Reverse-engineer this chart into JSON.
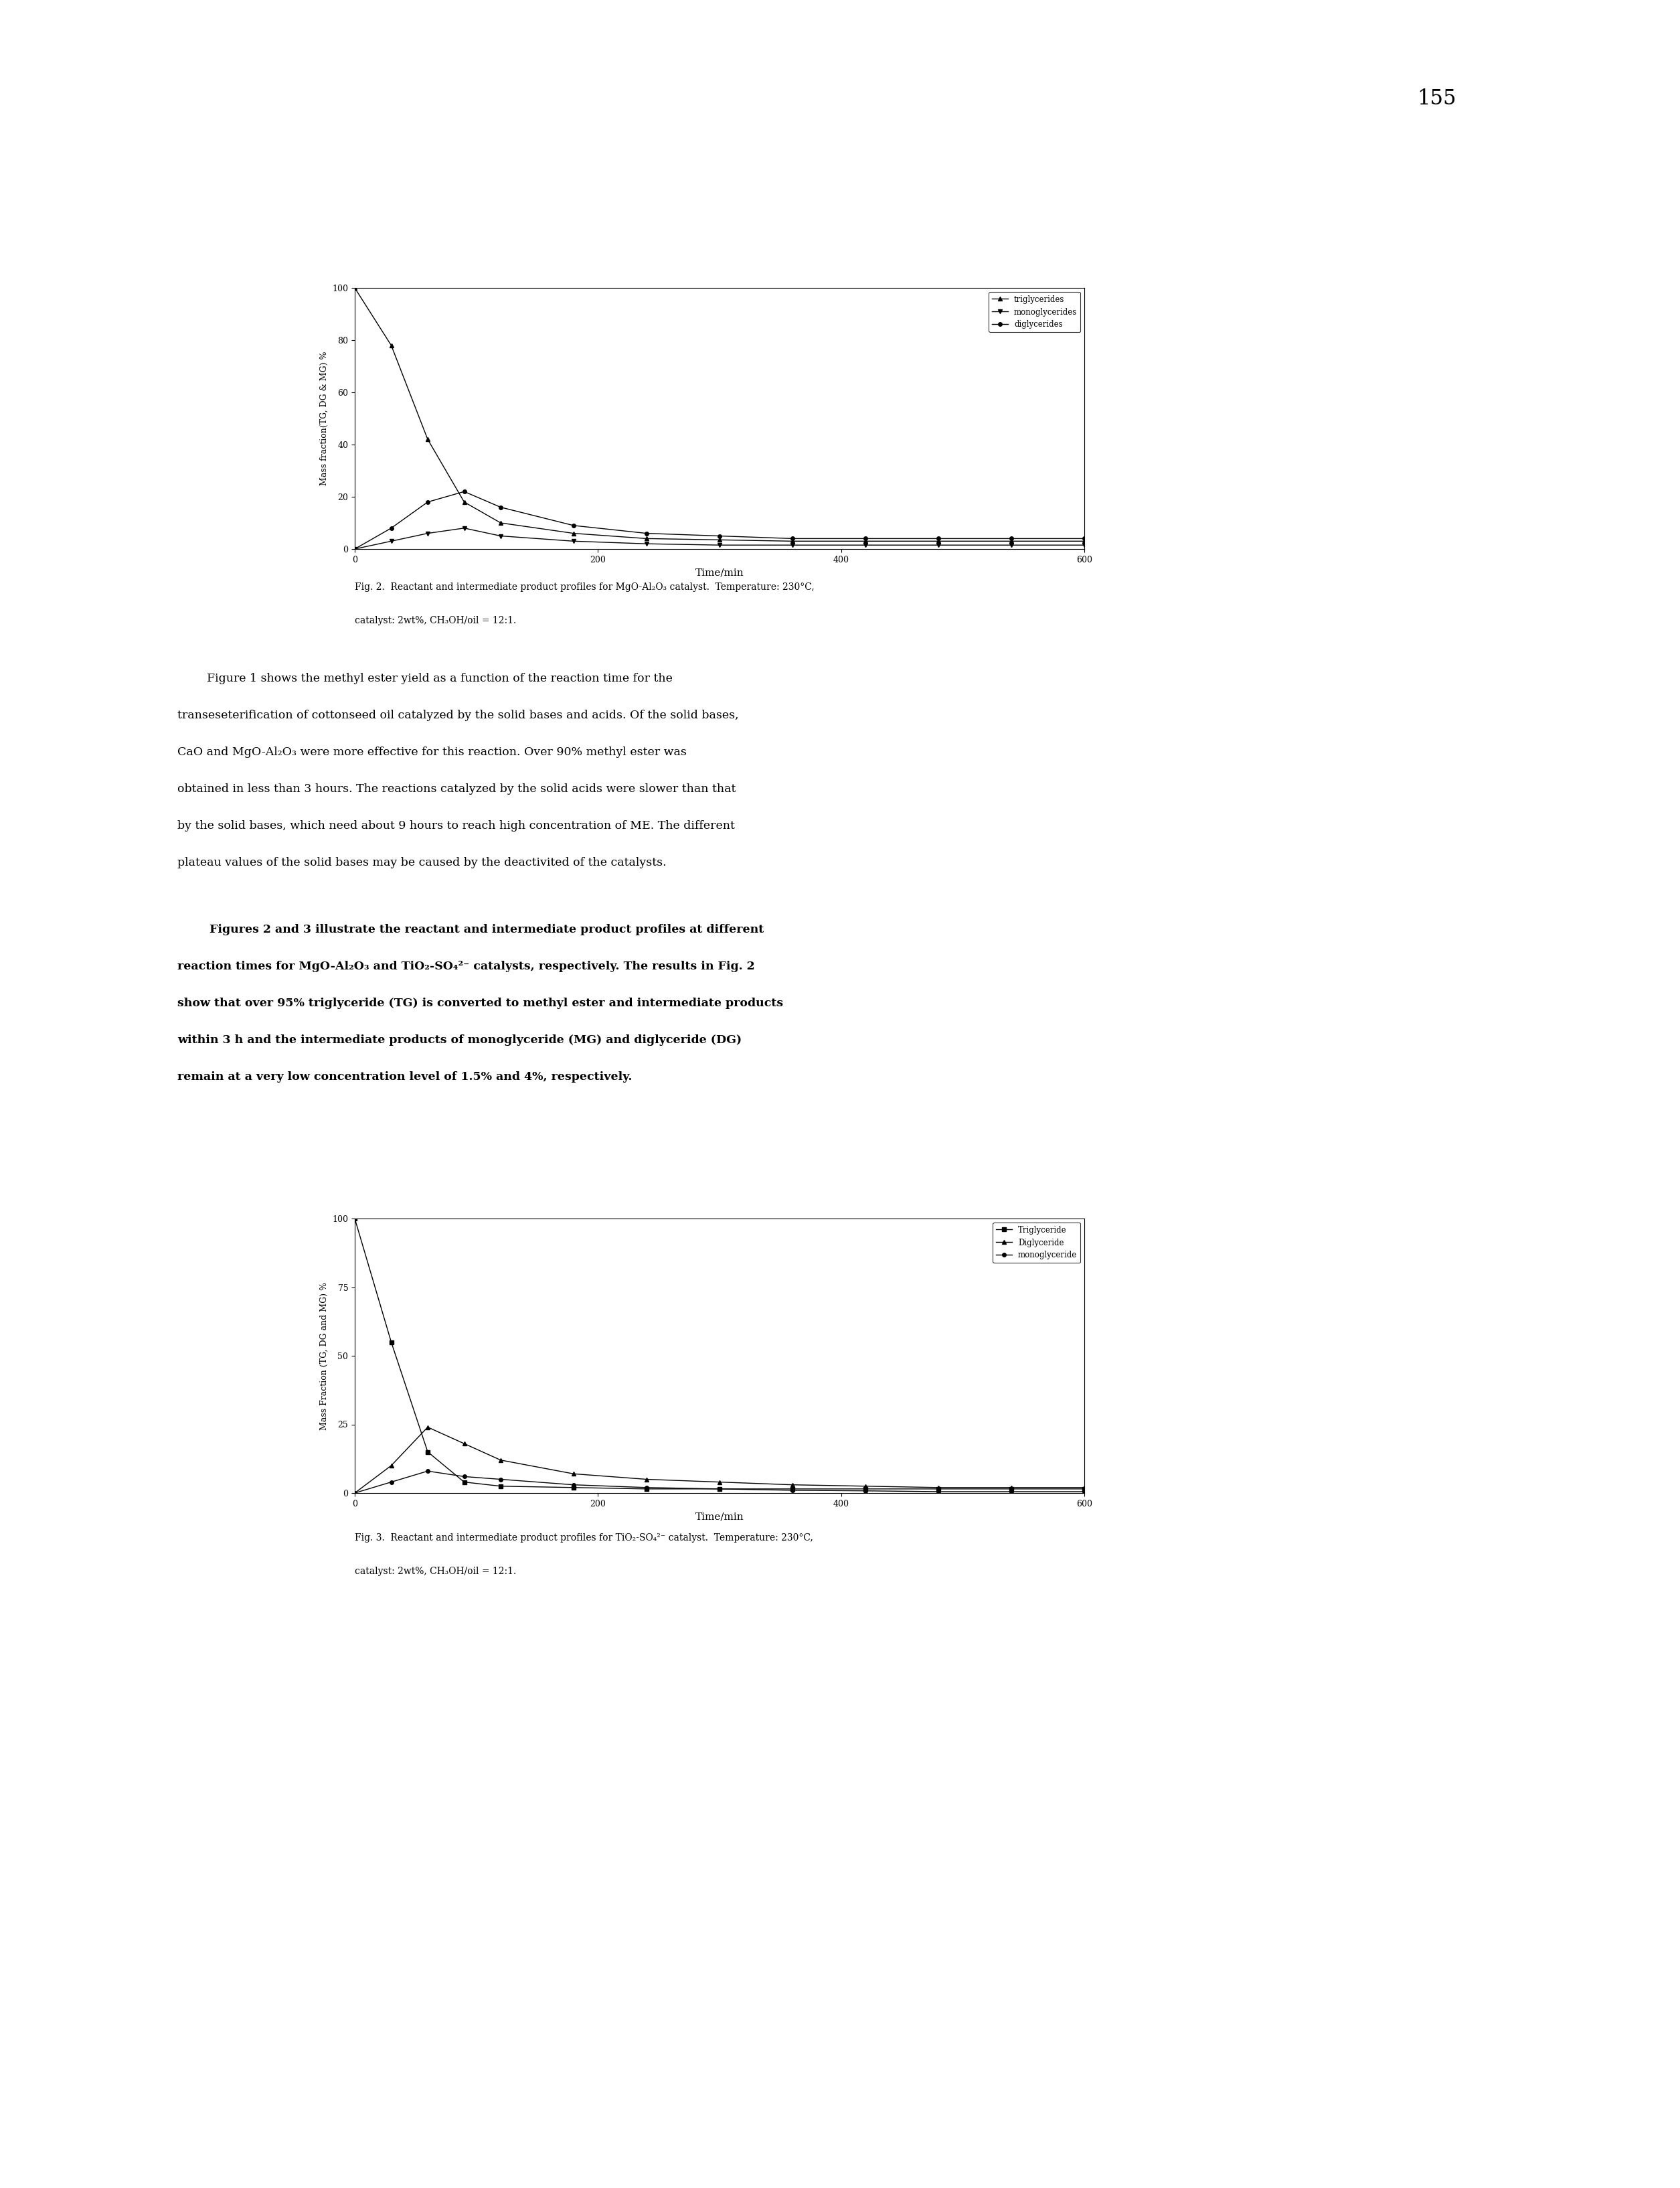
{
  "page_number": "155",
  "fig2": {
    "xlabel": "Time/min",
    "ylabel": "Mass fraction(TG, DG & MG) %",
    "xlim": [
      0,
      600
    ],
    "ylim": [
      0,
      100
    ],
    "xticks": [
      0,
      200,
      400,
      600
    ],
    "yticks": [
      0,
      20,
      40,
      60,
      80,
      100
    ],
    "triglycerides": {
      "x": [
        0,
        30,
        60,
        90,
        120,
        180,
        240,
        300,
        360,
        420,
        480,
        540,
        600
      ],
      "y": [
        100,
        78,
        42,
        18,
        10,
        6,
        4,
        3.5,
        3,
        3,
        3,
        3,
        3
      ],
      "marker": "^",
      "label": "triglycerides"
    },
    "monoglycerides": {
      "x": [
        0,
        30,
        60,
        90,
        120,
        180,
        240,
        300,
        360,
        420,
        480,
        540,
        600
      ],
      "y": [
        0,
        3,
        6,
        8,
        5,
        3,
        2,
        1.5,
        1.5,
        1.5,
        1.5,
        1.5,
        1.5
      ],
      "marker": "v",
      "label": "monoglycerides"
    },
    "diglycerides": {
      "x": [
        0,
        30,
        60,
        90,
        120,
        180,
        240,
        300,
        360,
        420,
        480,
        540,
        600
      ],
      "y": [
        0,
        8,
        18,
        22,
        16,
        9,
        6,
        5,
        4,
        4,
        4,
        4,
        4
      ],
      "marker": "o",
      "label": "diglycerides"
    },
    "caption_line1": "Fig. 2.  Reactant and intermediate product profiles for MgO-Al₂O₃ catalyst.  Temperature: 230°C,",
    "caption_line2": "catalyst: 2wt%, CH₃OH/oil = 12:1."
  },
  "fig3": {
    "xlabel": "Time/min",
    "ylabel": "Mass Fraction (TG, DG and MG) %",
    "xlim": [
      0,
      600
    ],
    "ylim": [
      0,
      100
    ],
    "xticks": [
      0,
      200,
      400,
      600
    ],
    "yticks": [
      0,
      25,
      50,
      75,
      100
    ],
    "triglycerides": {
      "x": [
        0,
        30,
        60,
        90,
        120,
        180,
        240,
        300,
        360,
        420,
        480,
        540,
        600
      ],
      "y": [
        100,
        55,
        15,
        4,
        2.5,
        2,
        1.5,
        1.5,
        1.5,
        1.5,
        1.5,
        1.5,
        1.5
      ],
      "marker": "s",
      "label": "Triglyceride"
    },
    "diglycerides": {
      "x": [
        0,
        30,
        60,
        90,
        120,
        180,
        240,
        300,
        360,
        420,
        480,
        540,
        600
      ],
      "y": [
        0,
        10,
        24,
        18,
        12,
        7,
        5,
        4,
        3,
        2.5,
        2,
        2,
        2
      ],
      "marker": "^",
      "label": "Diglyceride"
    },
    "monoglycerides": {
      "x": [
        0,
        30,
        60,
        90,
        120,
        180,
        240,
        300,
        360,
        420,
        480,
        540,
        600
      ],
      "y": [
        0,
        4,
        8,
        6,
        5,
        3,
        2,
        1.5,
        1,
        0.8,
        0.5,
        0.5,
        0.5
      ],
      "marker": "o",
      "label": "monoglyceride"
    },
    "caption_line1": "Fig. 3.  Reactant and intermediate product profiles for TiO₂-SO₄²⁻ catalyst.  Temperature: 230°C,",
    "caption_line2": "catalyst: 2wt%, CH₃OH/oil = 12:1."
  },
  "body_para1_indent": "        Figure 1 shows the methyl ester yield as a function of the reaction time for the",
  "body_para1_lines": [
    "transeseterification of cottonseed oil catalyzed by the solid bases and acids. Of the solid bases,",
    "CaO and MgO-Al₂O₃ were more effective for this reaction. Over 90% methyl ester was",
    "obtained in less than 3 hours. The reactions catalyzed by the solid acids were slower than that",
    "by the solid bases, which need about 9 hours to reach high concentration of ME. The different",
    "plateau values of the solid bases may be caused by the deactivited of the catalysts."
  ],
  "body_para2_indent": "        Figures 2 and 3 illustrate the reactant and intermediate product profiles at different",
  "body_para2_lines": [
    "reaction times for MgO-Al₂O₃ and TiO₂-SO₄²⁻ catalysts, respectively. The results in Fig. 2",
    "show that over 95% triglyceride (TG) is converted to methyl ester and intermediate products",
    "within 3 h and the intermediate products of monoglyceride (MG) and diglyceride (DG)",
    "remain at a very low concentration level of 1.5% and 4%, respectively."
  ],
  "background_color": "#ffffff",
  "text_color": "#000000"
}
